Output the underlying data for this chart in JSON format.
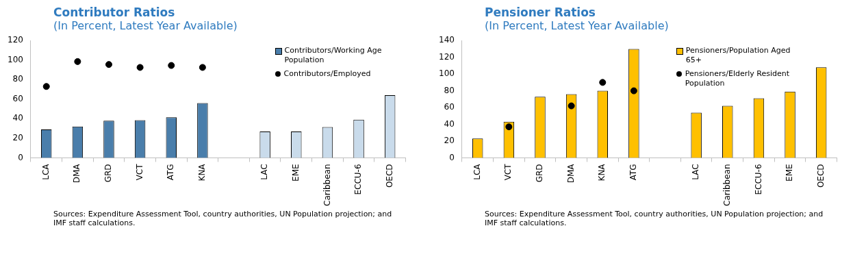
{
  "chart_data": [
    {
      "type": "bar",
      "title": "Contributor Ratios",
      "subtitle": "(In Percent, Latest Year Available)",
      "categories": [
        "LCA",
        "DMA",
        "GRD",
        "VCT",
        "ATG",
        "KNA",
        null,
        "LAC",
        "EME",
        "Caribbean",
        "ECCU-6",
        "OECD"
      ],
      "series": [
        {
          "name": "Contributors/Working Age Population",
          "type": "bar",
          "color": "#4a7eab",
          "colors": [
            "#4a7eab",
            "#4a7eab",
            "#4a7eab",
            "#4a7eab",
            "#4a7eab",
            "#4a7eab",
            "#4a7eab",
            "#c9dbeb",
            "#c9dbeb",
            "#c9dbeb",
            "#c9dbeb",
            "#c9dbeb"
          ],
          "values": [
            29,
            32,
            38,
            38.5,
            41.5,
            56,
            null,
            27,
            27,
            31.5,
            39,
            64
          ]
        },
        {
          "name": "Contributors/Employed",
          "type": "scatter",
          "color": "#000000",
          "marker": "circle",
          "x": [
            "LCA",
            "DMA",
            "GRD",
            "VCT",
            "ATG",
            "KNA"
          ],
          "values": [
            73,
            98.5,
            95.5,
            92.5,
            94.5,
            92.5
          ]
        }
      ],
      "ylim": [
        0,
        120
      ],
      "yticks": [
        0,
        20,
        40,
        60,
        80,
        100,
        120
      ],
      "legend": "top right",
      "annotations": [
        "Sources: Expenditure Assessment Tool, country authorities, UN Population projection; and IMF staff calculations."
      ]
    },
    {
      "type": "bar",
      "title": "Pensioner Ratios",
      "subtitle": "(In Percent, Latest Year Available)",
      "categories": [
        "LCA",
        "VCT",
        "GRD",
        "DMA",
        "KNA",
        "ATG",
        null,
        "LAC",
        "Caribbean",
        "ECCU-6",
        "EME",
        "OECD"
      ],
      "series": [
        {
          "name": "Pensioners/Population Aged 65+",
          "type": "bar",
          "color": "#ffc000",
          "values": [
            23,
            43,
            73,
            76,
            80,
            130,
            null,
            54,
            62,
            71,
            79,
            108
          ]
        },
        {
          "name": "Pensioners/Elderly Resident Population",
          "type": "scatter",
          "color": "#000000",
          "marker": "circle",
          "x": [
            "VCT",
            "DMA",
            "KNA",
            "ATG"
          ],
          "values": [
            37,
            62,
            90,
            80
          ]
        }
      ],
      "ylim": [
        0,
        140
      ],
      "yticks": [
        0,
        20,
        40,
        60,
        80,
        100,
        120,
        140
      ],
      "legend": "top right",
      "annotations": [
        "Sources: Expenditure Assessment Tool, country authorities, UN Population projection; and IMF staff calculations."
      ]
    }
  ]
}
